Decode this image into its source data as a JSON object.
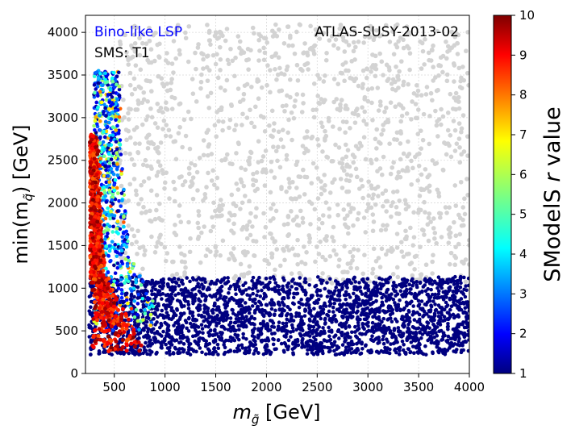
{
  "chart_data": {
    "type": "scatter",
    "xlabel_prefix": "m",
    "xlabel_sub": "g̃",
    "xlabel_suffix": "[GeV]",
    "ylabel_prefix": "min(m",
    "ylabel_sub": "q̃",
    "ylabel_suffix": ") [GeV]",
    "xlim": [
      216,
      4000
    ],
    "ylim": [
      0,
      4200
    ],
    "xticks": [
      500,
      1000,
      1500,
      2000,
      2500,
      3000,
      3500,
      4000
    ],
    "xtick_labels": [
      "500",
      "1000",
      "1500",
      "2000",
      "2500",
      "3000",
      "3500",
      "4000"
    ],
    "yticks": [
      0,
      500,
      1000,
      1500,
      2000,
      2500,
      3000,
      3500,
      4000
    ],
    "ytick_labels": [
      "0",
      "500",
      "1000",
      "1500",
      "2000",
      "2500",
      "3000",
      "3500",
      "4000"
    ],
    "grid": true,
    "annotations": {
      "top_left_line1": "Bino-like LSP",
      "top_left_line2": "SMS: T1",
      "top_right": "ATLAS-SUSY-2013-02"
    },
    "colorbar": {
      "label_prefix": "SModelS",
      "label_var": "r",
      "label_suffix": "value",
      "range": [
        1,
        10
      ],
      "ticks": [
        1,
        2,
        3,
        4,
        5,
        6,
        7,
        8,
        9,
        10
      ],
      "tick_labels": [
        "1",
        "2",
        "3",
        "4",
        "5",
        "6",
        "7",
        "8",
        "9",
        "10"
      ],
      "colormap": "jet"
    },
    "series": [
      {
        "kind": "gray",
        "color": "#d3d3d3",
        "region_x": [
          550,
          4000
        ],
        "region_y": [
          1050,
          4100
        ],
        "sample_points": [
          [
            700,
            3400
          ],
          [
            1200,
            2600
          ],
          [
            1800,
            3900
          ],
          [
            2400,
            1800
          ],
          [
            3000,
            2900
          ],
          [
            3600,
            3500
          ],
          [
            3900,
            1300
          ],
          [
            900,
            1700
          ],
          [
            1500,
            1200
          ],
          [
            2800,
            2200
          ],
          [
            3300,
            1600
          ],
          [
            2000,
            4050
          ]
        ],
        "approx_count": 1400
      },
      {
        "kind": "r_band",
        "r_value": 1,
        "region_x": [
          250,
          4000
        ],
        "region_y": [
          220,
          1150
        ],
        "sample_points": [
          [
            600,
            300
          ],
          [
            1000,
            800
          ],
          [
            1500,
            600
          ],
          [
            2000,
            1000
          ],
          [
            2500,
            400
          ],
          [
            3000,
            700
          ],
          [
            3500,
            300
          ],
          [
            3900,
            900
          ]
        ],
        "approx_count": 2600
      },
      {
        "kind": "r_high_diagonal",
        "r_range": [
          8,
          10
        ],
        "region_x": [
          260,
          700
        ],
        "region_y": [
          260,
          2800
        ],
        "sample_points": [
          [
            300,
            500
          ],
          [
            350,
            1200
          ],
          [
            400,
            2000
          ],
          [
            450,
            800
          ],
          [
            500,
            1500
          ],
          [
            600,
            1000
          ]
        ],
        "approx_count": 900
      },
      {
        "kind": "r_mixed_vertical",
        "r_range": [
          1,
          9
        ],
        "region_x": [
          300,
          900
        ],
        "region_y": [
          500,
          3550
        ],
        "sample_points": [
          [
            400,
            3400
          ],
          [
            500,
            2500
          ],
          [
            600,
            1800
          ],
          [
            700,
            1200
          ],
          [
            800,
            900
          ],
          [
            450,
            3000
          ]
        ],
        "approx_count": 800
      }
    ]
  }
}
